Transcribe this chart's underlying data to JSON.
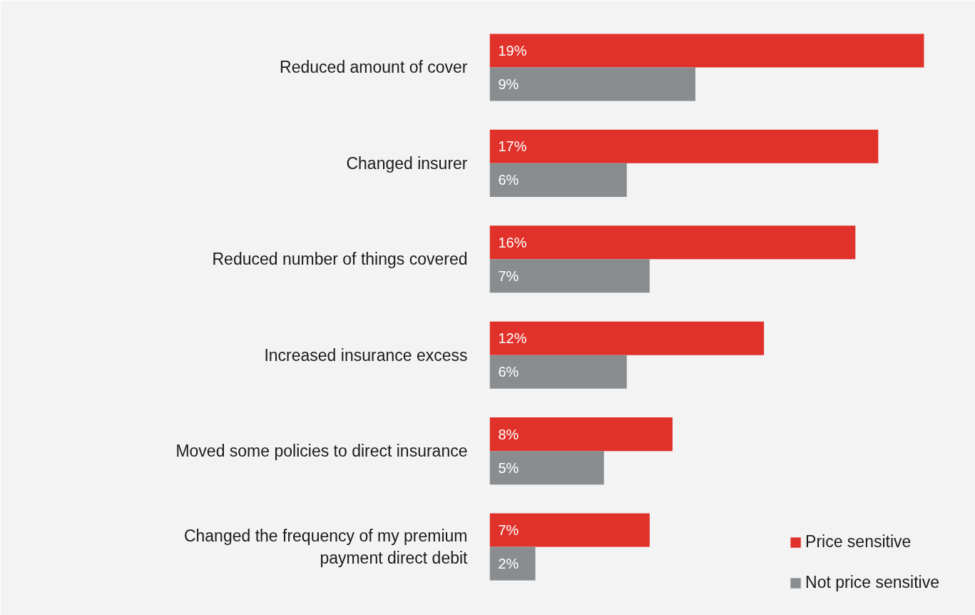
{
  "chart_data": {
    "type": "bar",
    "orientation": "horizontal",
    "categories": [
      "Reduced amount of cover",
      "Changed insurer",
      "Reduced number of things covered",
      "Increased insurance excess",
      "Moved some policies to direct insurance",
      "Changed the frequency of my premium payment direct debit"
    ],
    "series": [
      {
        "name": "Price sensitive",
        "color": "#e0312a",
        "values": [
          19,
          17,
          16,
          12,
          8,
          7
        ],
        "value_labels": [
          "19%",
          "17%",
          "16%",
          "12%",
          "8%",
          "7%"
        ]
      },
      {
        "name": "Not price sensitive",
        "color": "#8a8d90",
        "values": [
          9,
          6,
          7,
          6,
          5,
          2
        ],
        "value_labels": [
          "9%",
          "6%",
          "7%",
          "6%",
          "5%",
          "2%"
        ]
      }
    ],
    "xlim": [
      0,
      20
    ],
    "grid": false,
    "legend": "bottom right"
  }
}
